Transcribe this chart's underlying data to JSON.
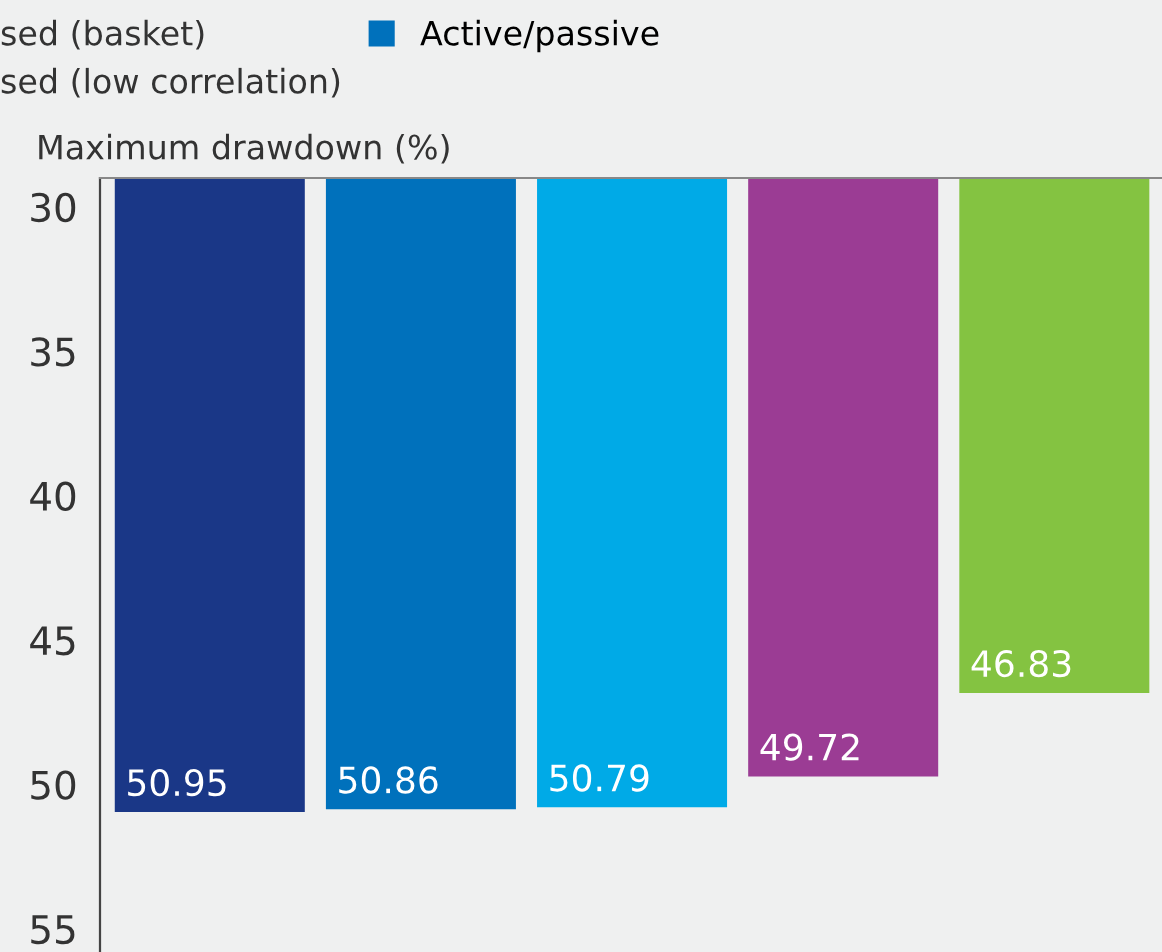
{
  "chart_data": {
    "type": "bar",
    "ylabel": "Maximum drawdown (%)",
    "categories": [
      null,
      null,
      null,
      null,
      null
    ],
    "series": [
      {
        "values": [
          50.95,
          null,
          null,
          null,
          null
        ],
        "color": "#1a3787"
      },
      {
        "name": "Active/passive",
        "values": [
          null,
          50.86,
          null,
          null,
          null
        ],
        "color": "#0071bc"
      },
      {
        "values": [
          null,
          null,
          50.79,
          null,
          null
        ],
        "color": "#00aae7"
      },
      {
        "values": [
          null,
          null,
          null,
          49.72,
          null
        ],
        "color": "#9b3c94"
      },
      {
        "values": [
          null,
          null,
          null,
          null,
          46.83
        ],
        "color": "#84c341"
      }
    ],
    "annotations": [
      "sed (basket)",
      "sed (low correlation)"
    ],
    "ylim": [
      55.8,
      29
    ],
    "yticks": [
      30,
      35,
      40,
      45,
      50,
      55
    ],
    "data_labels": true,
    "legend": "top",
    "tick_labels": "y",
    "grid": false
  }
}
